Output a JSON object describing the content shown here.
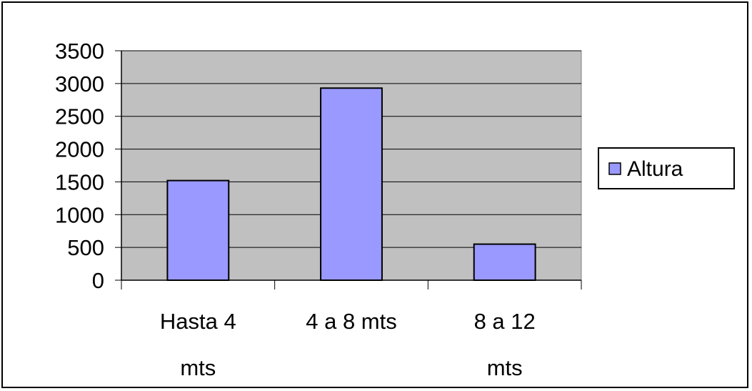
{
  "chart_data": {
    "type": "bar",
    "title": "",
    "xlabel": "",
    "ylabel": "",
    "categories": [
      [
        "Hasta 4",
        "mts"
      ],
      [
        "4 a 8 mts"
      ],
      [
        "8 a 12",
        "mts"
      ]
    ],
    "series": [
      {
        "name": "Altura",
        "values": [
          1520,
          2930,
          550
        ],
        "color": "#9999ff"
      }
    ],
    "ylim": [
      0,
      3500
    ],
    "yticks": [
      0,
      500,
      1000,
      1500,
      2000,
      2500,
      3000,
      3500
    ],
    "grid": true,
    "plot_background": "#c0c0c0",
    "legend": "right"
  }
}
